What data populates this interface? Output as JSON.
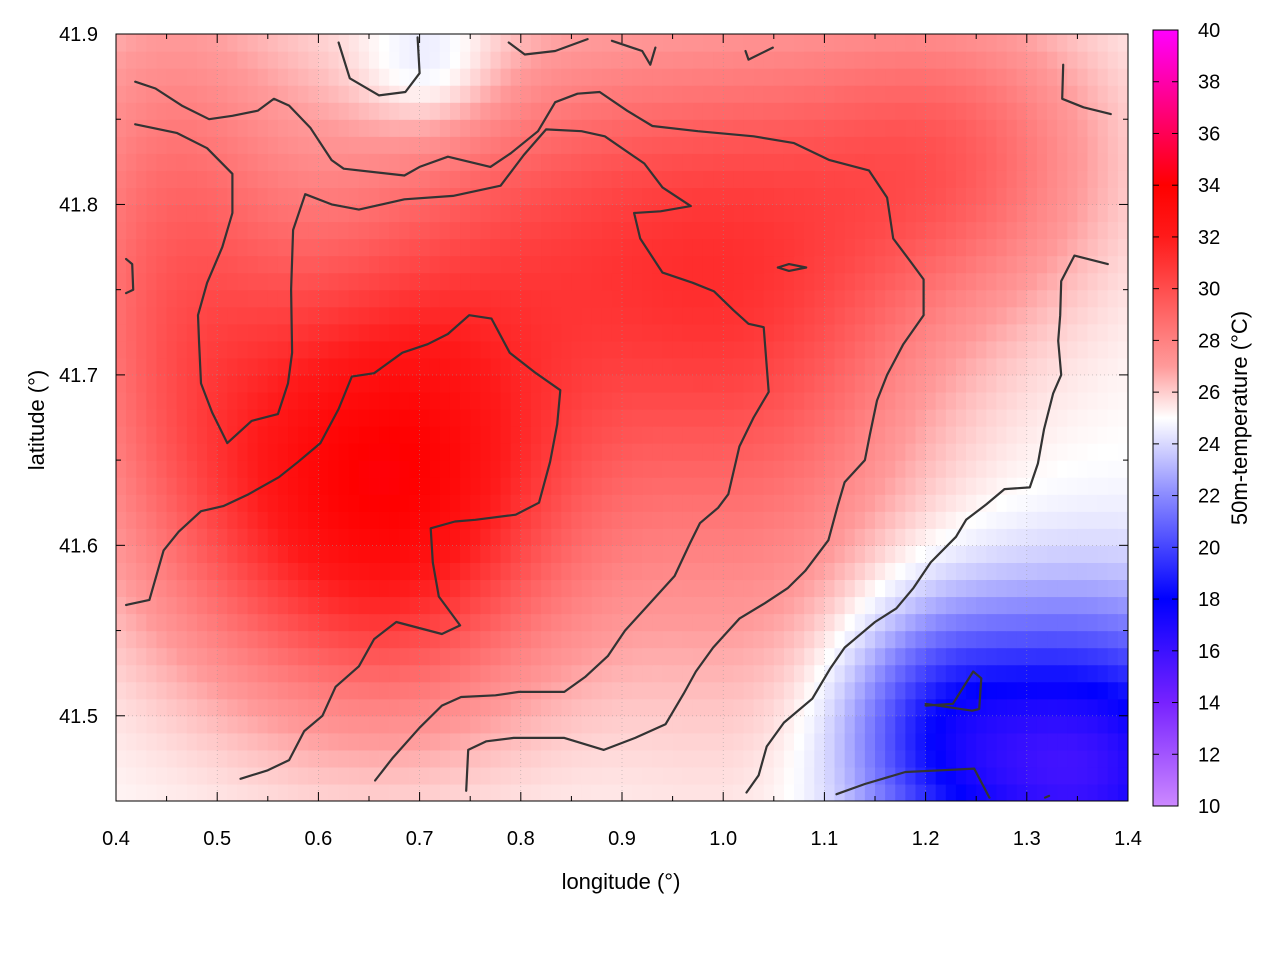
{
  "chart_data": {
    "type": "heatmap",
    "title": "",
    "xlabel": "longitude (°)",
    "ylabel": "latitude (°)",
    "colorbar_label": "50m-temperature (°C)",
    "xlim": [
      0.4,
      1.4
    ],
    "ylim": [
      41.45,
      41.9
    ],
    "x_ticks": [
      0.4,
      0.5,
      0.6,
      0.7,
      0.8,
      0.9,
      1.0,
      1.1,
      1.2,
      1.3,
      1.4
    ],
    "x_tick_labels": [
      "0.4",
      "0.5",
      "0.6",
      "0.7",
      "0.8",
      "0.9",
      "1.0",
      "1.1",
      "1.2",
      "1.3",
      "1.4"
    ],
    "y_ticks": [
      41.5,
      41.6,
      41.7,
      41.8,
      41.9
    ],
    "y_tick_labels": [
      "41.5",
      "41.6",
      "41.7",
      "41.8",
      "41.9"
    ],
    "colorbar_range": [
      10,
      40
    ],
    "colorbar_ticks": [
      10,
      12,
      14,
      16,
      18,
      20,
      22,
      24,
      26,
      28,
      30,
      32,
      34,
      36,
      38,
      40
    ],
    "colorbar_tick_labels": [
      "10",
      "12",
      "14",
      "16",
      "18",
      "20",
      "22",
      "24",
      "26",
      "28",
      "30",
      "32",
      "34",
      "36",
      "38",
      "40"
    ],
    "palette_stops": [
      {
        "value": 10,
        "color": "#cc88ff"
      },
      {
        "value": 14,
        "color": "#7722ff"
      },
      {
        "value": 18,
        "color": "#0000ff"
      },
      {
        "value": 22,
        "color": "#8a8aff"
      },
      {
        "value": 25,
        "color": "#ffffff"
      },
      {
        "value": 27,
        "color": "#ff9a9a"
      },
      {
        "value": 32,
        "color": "#ff1a1a"
      },
      {
        "value": 34,
        "color": "#ff0000"
      },
      {
        "value": 37,
        "color": "#ff0080"
      },
      {
        "value": 40,
        "color": "#ff00ff"
      }
    ],
    "grid": true,
    "legend": "none",
    "temperature_field": {
      "base": 25,
      "bumps": [
        {
          "x": 0.66,
          "y": 41.63,
          "amp": 8.5,
          "sx": 0.19,
          "sy": 0.12
        },
        {
          "x": 0.45,
          "y": 41.77,
          "amp": 3.5,
          "sx": 0.12,
          "sy": 0.16
        },
        {
          "x": 0.88,
          "y": 41.78,
          "amp": 4.5,
          "sx": 0.28,
          "sy": 0.12
        },
        {
          "x": 1.04,
          "y": 41.68,
          "amp": 3.0,
          "sx": 0.16,
          "sy": 0.18
        },
        {
          "x": 1.23,
          "y": 41.83,
          "amp": 3.5,
          "sx": 0.15,
          "sy": 0.09
        },
        {
          "x": 1.35,
          "y": 41.47,
          "amp": -9.0,
          "sx": 0.16,
          "sy": 0.09
        },
        {
          "x": 1.2,
          "y": 41.5,
          "amp": -3.5,
          "sx": 0.09,
          "sy": 0.07
        },
        {
          "x": 0.71,
          "y": 41.88,
          "amp": -2.0,
          "sx": 0.07,
          "sy": 0.04
        }
      ]
    },
    "contours": [
      {
        "level": "c1",
        "points": [
          [
            0.41,
            41.565
          ],
          [
            0.433,
            41.568
          ],
          [
            0.447,
            41.597
          ],
          [
            0.462,
            41.608
          ],
          [
            0.484,
            41.62
          ],
          [
            0.506,
            41.623
          ],
          [
            0.531,
            41.63
          ],
          [
            0.561,
            41.64
          ],
          [
            0.58,
            41.649
          ],
          [
            0.602,
            41.66
          ],
          [
            0.62,
            41.68
          ],
          [
            0.633,
            41.699
          ],
          [
            0.655,
            41.701
          ],
          [
            0.683,
            41.713
          ],
          [
            0.708,
            41.718
          ],
          [
            0.728,
            41.724
          ],
          [
            0.749,
            41.735
          ],
          [
            0.771,
            41.733
          ],
          [
            0.789,
            41.713
          ],
          [
            0.815,
            41.701
          ],
          [
            0.839,
            41.691
          ],
          [
            0.836,
            41.671
          ],
          [
            0.829,
            41.649
          ],
          [
            0.818,
            41.625
          ],
          [
            0.795,
            41.618
          ],
          [
            0.755,
            41.615
          ],
          [
            0.735,
            41.614
          ],
          [
            0.711,
            41.61
          ],
          [
            0.713,
            41.59
          ],
          [
            0.719,
            41.57
          ],
          [
            0.74,
            41.553
          ],
          [
            0.722,
            41.548
          ],
          [
            0.677,
            41.555
          ],
          [
            0.655,
            41.545
          ],
          [
            0.64,
            41.529
          ],
          [
            0.617,
            41.517
          ],
          [
            0.604,
            41.5
          ],
          [
            0.586,
            41.491
          ],
          [
            0.571,
            41.474
          ],
          [
            0.55,
            41.468
          ],
          [
            0.523,
            41.463
          ]
        ]
      },
      {
        "level": "c2",
        "points": [
          [
            0.656,
            41.462
          ],
          [
            0.673,
            41.475
          ],
          [
            0.7,
            41.493
          ],
          [
            0.722,
            41.506
          ],
          [
            0.741,
            41.511
          ],
          [
            0.775,
            41.512
          ],
          [
            0.798,
            41.514
          ],
          [
            0.843,
            41.514
          ],
          [
            0.864,
            41.523
          ],
          [
            0.886,
            41.535
          ],
          [
            0.903,
            41.55
          ],
          [
            0.926,
            41.565
          ],
          [
            0.952,
            41.582
          ],
          [
            0.967,
            41.601
          ],
          [
            0.977,
            41.613
          ],
          [
            0.995,
            41.622
          ],
          [
            1.005,
            41.63
          ],
          [
            1.016,
            41.658
          ],
          [
            1.03,
            41.675
          ],
          [
            1.045,
            41.69
          ],
          [
            1.04,
            41.728
          ],
          [
            1.025,
            41.73
          ],
          [
            1.01,
            41.738
          ],
          [
            0.991,
            41.749
          ],
          [
            0.97,
            41.754
          ],
          [
            0.94,
            41.76
          ],
          [
            0.918,
            41.78
          ],
          [
            0.912,
            41.795
          ],
          [
            0.938,
            41.796
          ],
          [
            0.968,
            41.799
          ],
          [
            0.94,
            41.81
          ],
          [
            0.922,
            41.824
          ],
          [
            0.883,
            41.84
          ],
          [
            0.86,
            41.843
          ],
          [
            0.825,
            41.844
          ],
          [
            0.803,
            41.829
          ],
          [
            0.78,
            41.811
          ],
          [
            0.733,
            41.805
          ],
          [
            0.685,
            41.803
          ],
          [
            0.64,
            41.797
          ],
          [
            0.613,
            41.8
          ],
          [
            0.587,
            41.806
          ],
          [
            0.575,
            41.785
          ],
          [
            0.573,
            41.75
          ],
          [
            0.574,
            41.713
          ],
          [
            0.57,
            41.695
          ],
          [
            0.56,
            41.677
          ],
          [
            0.534,
            41.673
          ],
          [
            0.51,
            41.66
          ],
          [
            0.495,
            41.678
          ],
          [
            0.484,
            41.695
          ],
          [
            0.482,
            41.72
          ],
          [
            0.481,
            41.735
          ],
          [
            0.49,
            41.754
          ],
          [
            0.505,
            41.775
          ],
          [
            0.515,
            41.795
          ],
          [
            0.515,
            41.818
          ],
          [
            0.49,
            41.833
          ],
          [
            0.46,
            41.842
          ],
          [
            0.419,
            41.847
          ]
        ]
      },
      {
        "level": "c3",
        "points": [
          [
            1.023,
            41.455
          ],
          [
            1.035,
            41.465
          ],
          [
            1.043,
            41.482
          ],
          [
            1.06,
            41.496
          ],
          [
            1.088,
            41.51
          ],
          [
            1.106,
            41.528
          ],
          [
            1.12,
            41.54
          ],
          [
            1.15,
            41.555
          ],
          [
            1.171,
            41.563
          ],
          [
            1.188,
            41.575
          ],
          [
            1.205,
            41.59
          ],
          [
            1.23,
            41.605
          ],
          [
            1.24,
            41.615
          ],
          [
            1.26,
            41.624
          ],
          [
            1.278,
            41.633
          ],
          [
            1.303,
            41.634
          ],
          [
            1.311,
            41.648
          ],
          [
            1.317,
            41.668
          ],
          [
            1.326,
            41.689
          ],
          [
            1.334,
            41.7
          ],
          [
            1.331,
            41.72
          ],
          [
            1.333,
            41.735
          ],
          [
            1.334,
            41.755
          ],
          [
            1.347,
            41.77
          ],
          [
            1.38,
            41.765
          ]
        ]
      },
      {
        "level": "c4",
        "points": [
          [
            0.746,
            41.456
          ],
          [
            0.748,
            41.48
          ],
          [
            0.766,
            41.485
          ],
          [
            0.793,
            41.487
          ],
          [
            0.843,
            41.487
          ],
          [
            0.882,
            41.48
          ],
          [
            0.913,
            41.487
          ],
          [
            0.943,
            41.495
          ],
          [
            0.961,
            41.513
          ],
          [
            0.973,
            41.526
          ],
          [
            0.99,
            41.54
          ],
          [
            1.016,
            41.557
          ],
          [
            1.041,
            41.566
          ],
          [
            1.064,
            41.575
          ],
          [
            1.081,
            41.585
          ],
          [
            1.104,
            41.603
          ],
          [
            1.113,
            41.623
          ],
          [
            1.12,
            41.637
          ],
          [
            1.14,
            41.65
          ],
          [
            1.145,
            41.665
          ],
          [
            1.152,
            41.685
          ],
          [
            1.162,
            41.7
          ],
          [
            1.178,
            41.718
          ],
          [
            1.198,
            41.735
          ],
          [
            1.198,
            41.756
          ],
          [
            1.187,
            41.765
          ],
          [
            1.168,
            41.78
          ],
          [
            1.162,
            41.804
          ],
          [
            1.144,
            41.82
          ],
          [
            1.105,
            41.826
          ],
          [
            1.07,
            41.836
          ],
          [
            1.03,
            41.84
          ],
          [
            0.975,
            41.843
          ],
          [
            0.93,
            41.846
          ],
          [
            0.905,
            41.855
          ],
          [
            0.878,
            41.866
          ],
          [
            0.856,
            41.865
          ],
          [
            0.834,
            41.86
          ],
          [
            0.817,
            41.843
          ],
          [
            0.79,
            41.83
          ],
          [
            0.77,
            41.822
          ],
          [
            0.728,
            41.828
          ],
          [
            0.7,
            41.822
          ],
          [
            0.685,
            41.817
          ],
          [
            0.625,
            41.821
          ],
          [
            0.613,
            41.826
          ],
          [
            0.592,
            41.845
          ],
          [
            0.571,
            41.858
          ],
          [
            0.556,
            41.862
          ],
          [
            0.54,
            41.855
          ],
          [
            0.515,
            41.852
          ],
          [
            0.492,
            41.85
          ],
          [
            0.465,
            41.858
          ],
          [
            0.439,
            41.868
          ],
          [
            0.419,
            41.872
          ]
        ]
      },
      {
        "level": "c5",
        "points": [
          [
            0.62,
            41.895
          ],
          [
            0.631,
            41.874
          ],
          [
            0.66,
            41.864
          ],
          [
            0.686,
            41.866
          ],
          [
            0.7,
            41.877
          ],
          [
            0.698,
            41.898
          ]
        ]
      },
      {
        "level": "c6",
        "points": [
          [
            0.788,
            41.895
          ],
          [
            0.804,
            41.888
          ],
          [
            0.834,
            41.89
          ],
          [
            0.866,
            41.897
          ]
        ]
      },
      {
        "level": "c7",
        "points": [
          [
            0.89,
            41.896
          ],
          [
            0.92,
            41.89
          ],
          [
            0.928,
            41.882
          ],
          [
            0.933,
            41.892
          ]
        ]
      },
      {
        "level": "c8",
        "points": [
          [
            1.022,
            41.89
          ],
          [
            1.025,
            41.885
          ],
          [
            1.049,
            41.892
          ]
        ]
      },
      {
        "level": "c9",
        "points": [
          [
            1.336,
            41.882
          ],
          [
            1.335,
            41.862
          ],
          [
            1.356,
            41.857
          ],
          [
            1.383,
            41.853
          ]
        ]
      },
      {
        "level": "c10",
        "points": [
          [
            0.41,
            41.768
          ],
          [
            0.416,
            41.765
          ],
          [
            0.417,
            41.75
          ],
          [
            0.41,
            41.748
          ]
        ]
      },
      {
        "level": "c11",
        "points": [
          [
            1.054,
            41.763
          ],
          [
            1.065,
            41.765
          ],
          [
            1.082,
            41.763
          ],
          [
            1.065,
            41.761
          ],
          [
            1.054,
            41.763
          ]
        ]
      },
      {
        "level": "c12",
        "points": [
          [
            1.2,
            41.506
          ],
          [
            1.227,
            41.507
          ],
          [
            1.247,
            41.526
          ],
          [
            1.255,
            41.522
          ],
          [
            1.253,
            41.504
          ],
          [
            1.246,
            41.503
          ],
          [
            1.2,
            41.507
          ]
        ]
      },
      {
        "level": "c13",
        "points": [
          [
            1.112,
            41.454
          ],
          [
            1.14,
            41.46
          ],
          [
            1.18,
            41.467
          ],
          [
            1.215,
            41.468
          ],
          [
            1.248,
            41.469
          ],
          [
            1.263,
            41.452
          ]
        ]
      },
      {
        "level": "c14",
        "points": [
          [
            1.318,
            41.452
          ],
          [
            1.322,
            41.453
          ]
        ]
      }
    ]
  }
}
